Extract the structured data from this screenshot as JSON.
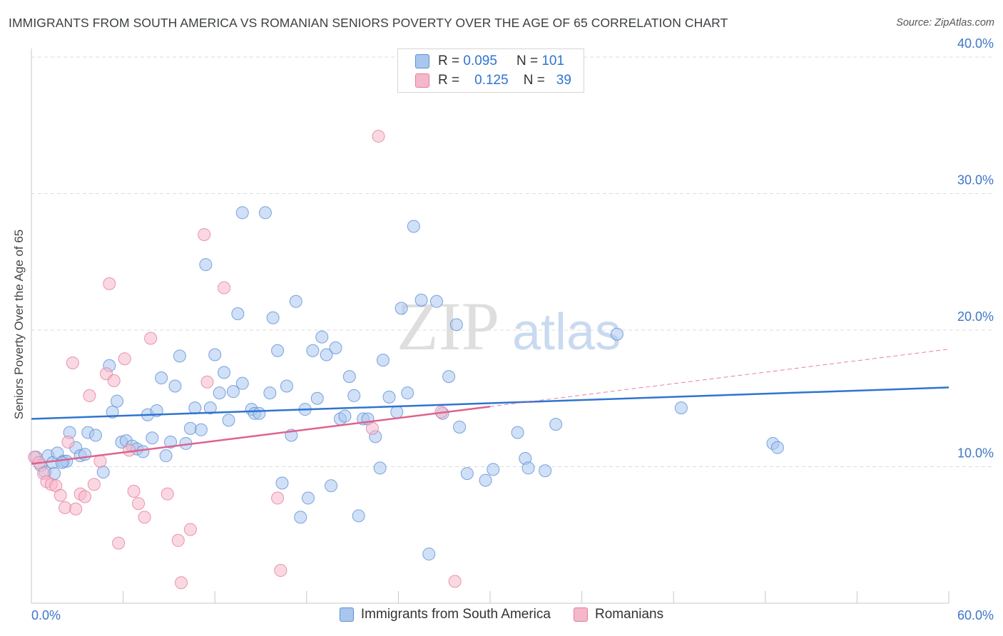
{
  "title": "IMMIGRANTS FROM SOUTH AMERICA VS ROMANIAN SENIORS POVERTY OVER THE AGE OF 65 CORRELATION CHART",
  "source": "Source: ZipAtlas.com",
  "watermark": {
    "zip": "ZIP",
    "atlas": "atlas"
  },
  "legend": {
    "rows": [
      {
        "r_label": "R =",
        "r_value": "0.095",
        "n_label": "N =",
        "n_value": "101"
      },
      {
        "r_label": "R =",
        "r_value": "0.125",
        "n_label": "N =",
        "n_value": "39"
      }
    ]
  },
  "colors": {
    "blue_fill": "#a9c7ee",
    "blue_stroke": "#5b8fd6",
    "blue_line": "#2f74d0",
    "pink_fill": "#f5b8cb",
    "pink_stroke": "#e67a9c",
    "pink_line": "#e0628c",
    "axis_label": "#3f75c9",
    "grid": "#dcdcdc"
  },
  "chart_data": {
    "type": "scatter",
    "title": "IMMIGRANTS FROM SOUTH AMERICA VS ROMANIAN SENIORS POVERTY OVER THE AGE OF 65 CORRELATION CHART",
    "xlabel": "",
    "ylabel": "Seniors Poverty Over the Age of 65",
    "xlim": [
      0,
      60
    ],
    "ylim": [
      0,
      40
    ],
    "x_tick_labels": [
      {
        "value": 0,
        "label": "0.0%"
      },
      {
        "value": 60,
        "label": "60.0%"
      }
    ],
    "y_tick_labels": [
      {
        "value": 10,
        "label": "10.0%"
      },
      {
        "value": 20,
        "label": "20.0%"
      },
      {
        "value": 30,
        "label": "30.0%"
      },
      {
        "value": 40,
        "label": "40.0%"
      }
    ],
    "grid": true,
    "legend_position": "top-center",
    "series": [
      {
        "name": "Immigrants from South America",
        "R": 0.095,
        "N": 101,
        "trend": {
          "x": [
            0,
            60
          ],
          "y": [
            13.5,
            15.8
          ]
        },
        "points": [
          [
            0.3,
            10.7
          ],
          [
            0.6,
            10.1
          ],
          [
            0.9,
            9.6
          ],
          [
            1.1,
            10.8
          ],
          [
            1.4,
            10.3
          ],
          [
            1.7,
            11.0
          ],
          [
            2.1,
            10.4
          ],
          [
            2.3,
            10.4
          ],
          [
            2.5,
            12.5
          ],
          [
            2.9,
            11.4
          ],
          [
            3.2,
            10.8
          ],
          [
            3.5,
            10.9
          ],
          [
            3.7,
            12.5
          ],
          [
            4.2,
            12.3
          ],
          [
            4.7,
            9.6
          ],
          [
            5.1,
            17.4
          ],
          [
            5.3,
            14.0
          ],
          [
            5.6,
            14.8
          ],
          [
            5.9,
            11.8
          ],
          [
            6.2,
            11.9
          ],
          [
            6.6,
            11.5
          ],
          [
            6.9,
            11.3
          ],
          [
            7.3,
            11.1
          ],
          [
            7.6,
            13.8
          ],
          [
            7.9,
            12.1
          ],
          [
            8.2,
            14.1
          ],
          [
            8.5,
            16.5
          ],
          [
            8.8,
            10.8
          ],
          [
            9.1,
            11.8
          ],
          [
            9.4,
            15.9
          ],
          [
            9.7,
            18.1
          ],
          [
            10.1,
            11.7
          ],
          [
            10.4,
            12.8
          ],
          [
            10.7,
            14.3
          ],
          [
            11.1,
            12.7
          ],
          [
            11.4,
            24.8
          ],
          [
            11.7,
            14.3
          ],
          [
            12.0,
            18.2
          ],
          [
            12.3,
            15.4
          ],
          [
            12.6,
            16.9
          ],
          [
            12.9,
            13.4
          ],
          [
            13.2,
            15.5
          ],
          [
            13.5,
            21.2
          ],
          [
            13.8,
            16.1
          ],
          [
            13.8,
            28.6
          ],
          [
            14.4,
            14.2
          ],
          [
            14.6,
            13.9
          ],
          [
            14.9,
            13.9
          ],
          [
            15.3,
            28.6
          ],
          [
            15.6,
            15.4
          ],
          [
            15.8,
            20.9
          ],
          [
            16.1,
            18.5
          ],
          [
            16.4,
            8.8
          ],
          [
            16.7,
            15.9
          ],
          [
            17.0,
            12.3
          ],
          [
            17.3,
            22.1
          ],
          [
            17.6,
            6.3
          ],
          [
            17.9,
            14.2
          ],
          [
            18.1,
            7.7
          ],
          [
            18.4,
            18.5
          ],
          [
            18.7,
            15.0
          ],
          [
            19.0,
            19.5
          ],
          [
            19.3,
            18.2
          ],
          [
            19.6,
            8.6
          ],
          [
            19.9,
            18.7
          ],
          [
            20.2,
            13.5
          ],
          [
            20.5,
            13.7
          ],
          [
            20.8,
            16.6
          ],
          [
            21.1,
            15.2
          ],
          [
            21.4,
            6.4
          ],
          [
            21.7,
            13.5
          ],
          [
            22.0,
            13.5
          ],
          [
            22.5,
            12.2
          ],
          [
            22.8,
            9.9
          ],
          [
            23.0,
            17.8
          ],
          [
            23.4,
            15.1
          ],
          [
            23.9,
            14.0
          ],
          [
            24.2,
            21.6
          ],
          [
            24.6,
            15.4
          ],
          [
            25.0,
            27.6
          ],
          [
            25.5,
            22.2
          ],
          [
            26.0,
            3.6
          ],
          [
            26.5,
            22.1
          ],
          [
            26.9,
            13.9
          ],
          [
            27.3,
            16.6
          ],
          [
            27.8,
            20.4
          ],
          [
            28.0,
            12.9
          ],
          [
            28.5,
            9.5
          ],
          [
            29.7,
            9.0
          ],
          [
            30.2,
            9.8
          ],
          [
            31.8,
            12.5
          ],
          [
            32.3,
            10.6
          ],
          [
            32.5,
            9.9
          ],
          [
            33.6,
            9.7
          ],
          [
            34.3,
            13.1
          ],
          [
            38.3,
            19.7
          ],
          [
            42.5,
            14.3
          ],
          [
            48.5,
            11.7
          ],
          [
            48.8,
            11.4
          ],
          [
            2.0,
            10.3
          ],
          [
            1.5,
            9.5
          ]
        ]
      },
      {
        "name": "Romanians",
        "R": 0.125,
        "N": 39,
        "trend": {
          "x": [
            0,
            30
          ],
          "y": [
            10.2,
            14.4
          ]
        },
        "trend_extended": {
          "x": [
            30,
            60
          ],
          "y": [
            14.4,
            18.6
          ]
        },
        "points": [
          [
            0.2,
            10.7
          ],
          [
            0.5,
            10.3
          ],
          [
            0.8,
            9.5
          ],
          [
            1.0,
            8.9
          ],
          [
            1.3,
            8.7
          ],
          [
            1.6,
            8.6
          ],
          [
            1.9,
            7.9
          ],
          [
            2.2,
            7.0
          ],
          [
            2.4,
            11.8
          ],
          [
            2.7,
            17.6
          ],
          [
            2.9,
            6.9
          ],
          [
            3.2,
            8.0
          ],
          [
            3.5,
            7.8
          ],
          [
            3.8,
            15.2
          ],
          [
            4.1,
            8.7
          ],
          [
            4.5,
            10.4
          ],
          [
            4.9,
            16.8
          ],
          [
            5.1,
            23.4
          ],
          [
            5.4,
            16.3
          ],
          [
            5.7,
            4.4
          ],
          [
            6.1,
            17.9
          ],
          [
            6.4,
            11.2
          ],
          [
            6.7,
            8.2
          ],
          [
            7.0,
            7.3
          ],
          [
            7.4,
            6.3
          ],
          [
            7.8,
            19.4
          ],
          [
            8.9,
            8.0
          ],
          [
            9.8,
            1.5
          ],
          [
            9.6,
            4.6
          ],
          [
            10.4,
            5.4
          ],
          [
            11.3,
            27.0
          ],
          [
            11.5,
            16.2
          ],
          [
            12.6,
            23.1
          ],
          [
            16.1,
            7.7
          ],
          [
            16.3,
            2.4
          ],
          [
            22.3,
            12.8
          ],
          [
            22.7,
            34.2
          ],
          [
            26.8,
            14.0
          ],
          [
            27.7,
            1.6
          ]
        ]
      }
    ]
  }
}
